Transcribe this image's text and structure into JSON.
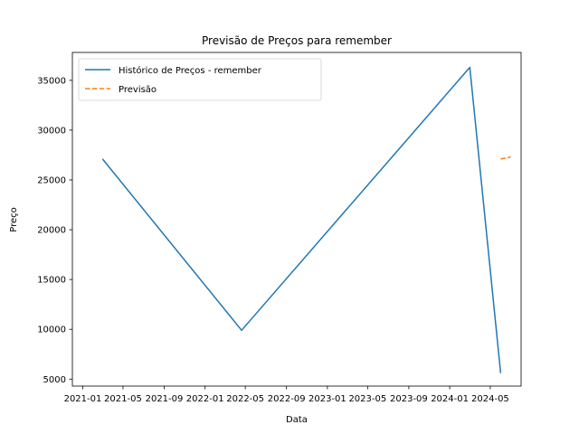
{
  "chart_data": {
    "type": "line",
    "title": "Previsão de Preços para remember",
    "xlabel": "Data",
    "ylabel": "Preço",
    "x_axis_type": "date",
    "xlim": [
      "2020-12-01",
      "2024-08-01"
    ],
    "ylim": [
      4300,
      37800
    ],
    "x_ticks": [
      {
        "date": "2021-01-01",
        "label": "2021-01"
      },
      {
        "date": "2021-05-01",
        "label": "2021-05"
      },
      {
        "date": "2021-09-01",
        "label": "2021-09"
      },
      {
        "date": "2022-01-01",
        "label": "2022-01"
      },
      {
        "date": "2022-05-01",
        "label": "2022-05"
      },
      {
        "date": "2022-09-01",
        "label": "2022-09"
      },
      {
        "date": "2023-01-01",
        "label": "2023-01"
      },
      {
        "date": "2023-05-01",
        "label": "2023-05"
      },
      {
        "date": "2023-09-01",
        "label": "2023-09"
      },
      {
        "date": "2024-01-01",
        "label": "2024-01"
      },
      {
        "date": "2024-05-01",
        "label": "2024-05"
      }
    ],
    "y_ticks": [
      5000,
      10000,
      15000,
      20000,
      25000,
      30000,
      35000
    ],
    "legend_position": "top-left",
    "grid": false,
    "series": [
      {
        "name": "Histórico de Preços - remember",
        "style": "solid",
        "color": "#1f77b4",
        "points": [
          {
            "x": "2021-03-01",
            "y": 27100
          },
          {
            "x": "2022-04-20",
            "y": 9900
          },
          {
            "x": "2024-03-01",
            "y": 36300
          },
          {
            "x": "2024-06-01",
            "y": 5600
          }
        ]
      },
      {
        "name": "Previsão",
        "style": "dashed",
        "color": "#ff7f0e",
        "points": [
          {
            "x": "2024-06-01",
            "y": 27100
          },
          {
            "x": "2024-07-01",
            "y": 27300
          }
        ]
      }
    ]
  }
}
